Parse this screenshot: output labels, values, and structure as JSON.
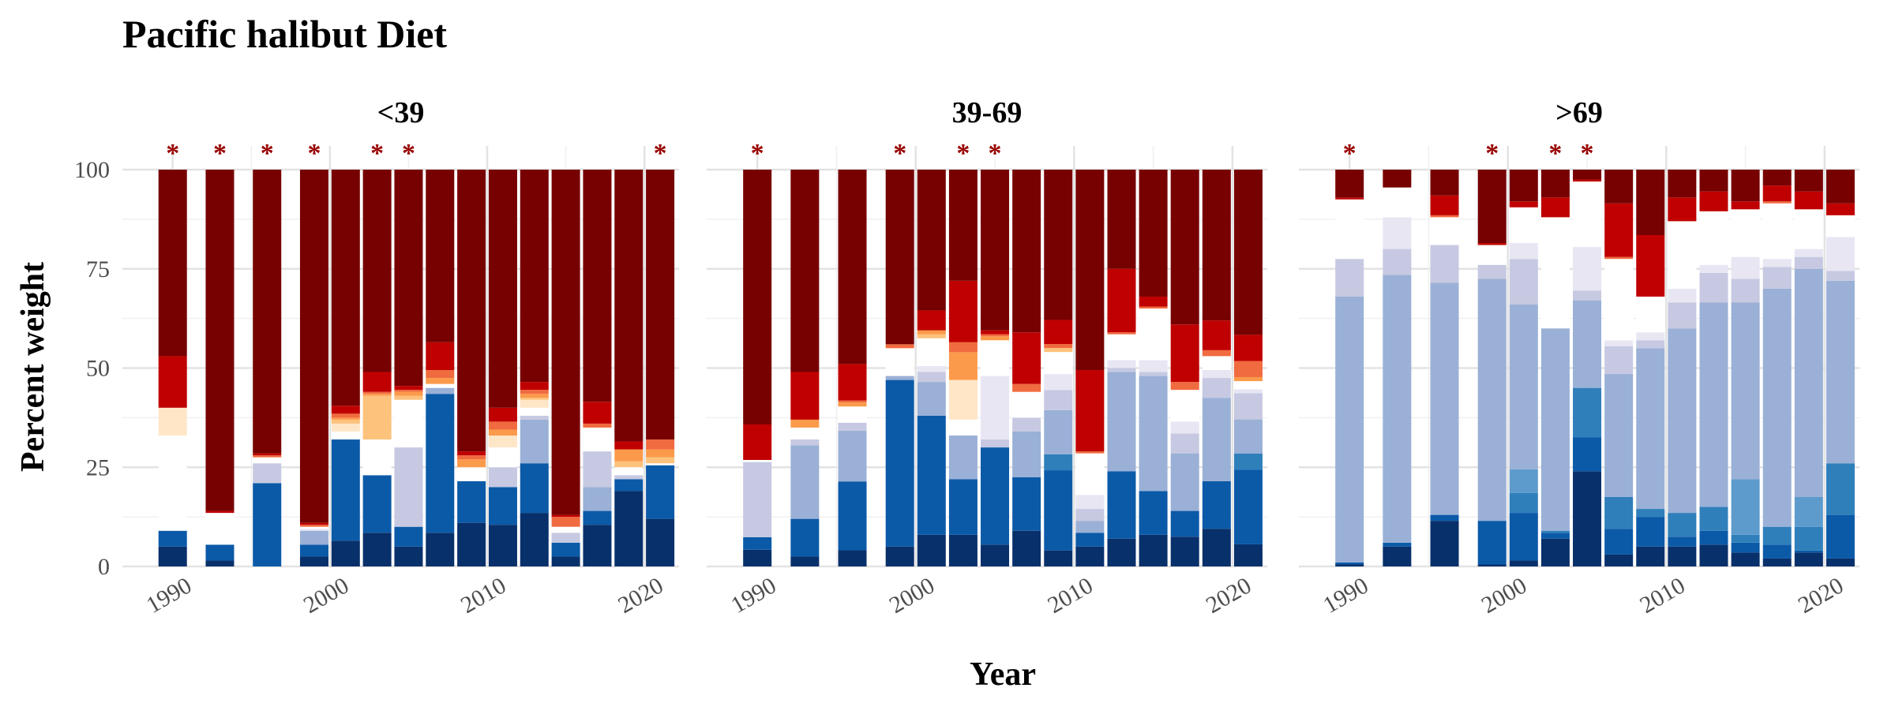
{
  "chart_data": {
    "type": "bar",
    "stacked": true,
    "title": "Pacific halibut Diet",
    "xlabel": "Year",
    "ylabel": "Percent weight",
    "ylim": [
      0,
      100
    ],
    "yticks": [
      "0",
      "25",
      "50",
      "75",
      "100"
    ],
    "xticks": [
      "1990",
      "2000",
      "2010",
      "2020"
    ],
    "xlim": [
      1986.8,
      2022.2
    ],
    "grid": true,
    "legend": "none",
    "colors": [
      "#08306b",
      "#0b5aa8",
      "#2f7fbb",
      "#5d9bcc",
      "#9ab0d6",
      "#c6c9e1",
      "#e8e6f3",
      "#ffffff",
      "#ffe6c7",
      "#fdc27c",
      "#fb9a4a",
      "#f06b3f",
      "#c00000",
      "#770000"
    ],
    "star_color": "#990000",
    "panels": [
      {
        "label": "<39",
        "bars": [
          {
            "year": 1990,
            "star": true,
            "values": [
              5,
              4,
              0,
              0,
              0,
              0,
              0,
              24,
              7,
              0,
              0,
              0,
              13,
              47
            ]
          },
          {
            "year": 1993,
            "star": true,
            "values": [
              1.5,
              4,
              0,
              0,
              0,
              0,
              0,
              8,
              0,
              0,
              0,
              0,
              0.5,
              86
            ]
          },
          {
            "year": 1996,
            "star": true,
            "values": [
              0,
              21,
              0,
              0,
              0,
              5,
              0,
              1.5,
              0,
              0,
              0,
              0.5,
              0.5,
              71.5
            ]
          },
          {
            "year": 1999,
            "star": true,
            "values": [
              2.5,
              3,
              0,
              0,
              3.5,
              0,
              0.5,
              0.5,
              0,
              0,
              0,
              0.5,
              0.5,
              89
            ]
          },
          {
            "year": 2001,
            "star": false,
            "values": [
              6.5,
              25.5,
              0,
              0,
              0,
              0,
              0,
              2,
              2,
              1,
              0.5,
              1,
              2,
              59.5
            ]
          },
          {
            "year": 2003,
            "star": true,
            "values": [
              8.5,
              14.5,
              0,
              0,
              0,
              0,
              0,
              9,
              0,
              11,
              0.5,
              0.5,
              5,
              51
            ]
          },
          {
            "year": 2005,
            "star": true,
            "values": [
              5,
              5,
              0,
              0,
              0,
              20,
              0,
              12,
              0,
              1,
              1,
              0.5,
              1,
              54.5
            ]
          },
          {
            "year": 2007,
            "star": false,
            "values": [
              8.5,
              35,
              0,
              0,
              1.5,
              0,
              0,
              1,
              0,
              0,
              1.5,
              2,
              7,
              43.5
            ]
          },
          {
            "year": 2009,
            "star": false,
            "values": [
              11,
              10.5,
              0,
              0,
              0,
              0,
              0,
              3.5,
              0,
              0,
              2,
              1,
              1,
              71
            ]
          },
          {
            "year": 2011,
            "star": false,
            "values": [
              10.5,
              9.5,
              0,
              0,
              0,
              5,
              0,
              5,
              3,
              0,
              1.5,
              2,
              3.5,
              60
            ]
          },
          {
            "year": 2013,
            "star": false,
            "values": [
              13.5,
              12.5,
              0,
              0,
              11,
              1,
              0,
              2,
              2,
              0.5,
              1,
              1,
              2,
              53.5
            ]
          },
          {
            "year": 2015,
            "star": false,
            "values": [
              2.5,
              3.5,
              0,
              0,
              0,
              2.5,
              0,
              1.5,
              0,
              0,
              0,
              2.5,
              0.5,
              87
            ]
          },
          {
            "year": 2017,
            "star": false,
            "values": [
              10.5,
              3.5,
              0,
              0,
              6,
              9,
              0,
              6,
              0,
              0,
              0,
              1,
              5.5,
              58.5
            ]
          },
          {
            "year": 2019,
            "star": false,
            "values": [
              19,
              3,
              0,
              0,
              0,
              1,
              0,
              2,
              0,
              1.5,
              3,
              0,
              2,
              68.5
            ]
          },
          {
            "year": 2021,
            "star": true,
            "values": [
              12,
              13.5,
              0,
              0,
              0,
              0,
              0,
              0.5,
              0,
              1.5,
              2,
              2.5,
              0,
              68
            ]
          }
        ]
      },
      {
        "label": "39-69",
        "bars": [
          {
            "year": 1990,
            "star": true,
            "values": [
              4,
              3,
              0,
              0,
              0,
              18,
              0,
              0.5,
              0,
              0,
              0,
              0,
              8.5,
              61
            ]
          },
          {
            "year": 1993,
            "star": false,
            "values": [
              2.5,
              9.5,
              0,
              0,
              18.5,
              1.5,
              0,
              3,
              0,
              0,
              2,
              0,
              12,
              51
            ]
          },
          {
            "year": 1996,
            "star": false,
            "values": [
              4,
              17,
              0,
              0,
              12.5,
              2,
              0,
              4,
              0,
              0,
              1,
              0.5,
              9,
              48
            ]
          },
          {
            "year": 1999,
            "star": true,
            "values": [
              5,
              42,
              0,
              0,
              1,
              0,
              0,
              7,
              0,
              0,
              0,
              1,
              0,
              44
            ]
          },
          {
            "year": 2001,
            "star": false,
            "values": [
              8,
              30,
              0,
              0,
              8.5,
              2.5,
              1.5,
              7,
              0,
              1,
              1,
              0,
              5,
              35.5
            ]
          },
          {
            "year": 2003,
            "star": true,
            "values": [
              8,
              14,
              0,
              0,
              11,
              0,
              0,
              4,
              10,
              0,
              7,
              2.5,
              15.5,
              28
            ]
          },
          {
            "year": 2005,
            "star": true,
            "values": [
              5.5,
              24.5,
              0,
              0,
              0,
              2,
              16,
              9,
              0,
              0,
              1,
              0.5,
              1,
              40.5
            ]
          },
          {
            "year": 2007,
            "star": false,
            "values": [
              9,
              13.5,
              0,
              0,
              11.5,
              3.5,
              0,
              6.5,
              0,
              0,
              0,
              2,
              13,
              41
            ]
          },
          {
            "year": 2009,
            "star": false,
            "values": [
              4,
              20,
              4,
              0,
              11,
              5,
              4,
              5.5,
              0,
              1,
              0,
              1,
              6,
              37.5
            ]
          },
          {
            "year": 2011,
            "star": false,
            "values": [
              5,
              3.5,
              0,
              0,
              3,
              3,
              3.5,
              10.5,
              0,
              0,
              0,
              0.5,
              20.5,
              50.5
            ]
          },
          {
            "year": 2013,
            "star": false,
            "values": [
              7,
              17,
              0,
              0,
              25,
              1,
              2,
              6.5,
              0,
              0,
              0,
              0.5,
              16,
              25
            ]
          },
          {
            "year": 2015,
            "star": false,
            "values": [
              8,
              11,
              0,
              0,
              29,
              1,
              3,
              13,
              0,
              0,
              0,
              0.5,
              2.5,
              32
            ]
          },
          {
            "year": 2017,
            "star": false,
            "values": [
              7.5,
              6.5,
              0,
              0,
              14.5,
              5,
              3,
              8,
              0,
              0,
              0,
              2,
              14.5,
              39
            ]
          },
          {
            "year": 2019,
            "star": false,
            "values": [
              9.5,
              12,
              0,
              0,
              21,
              5,
              2,
              3.5,
              0,
              0,
              0,
              1.5,
              7.5,
              38
            ]
          },
          {
            "year": 2021,
            "star": false,
            "values": [
              5.5,
              18.5,
              4,
              0,
              8.5,
              6.5,
              1,
              2,
              0,
              0,
              1,
              4,
              6.5,
              41
            ]
          }
        ]
      },
      {
        "label": ">69",
        "bars": [
          {
            "year": 1990,
            "star": true,
            "values": [
              0.5,
              0.5,
              0,
              0,
              67,
              9.5,
              0,
              15,
              0,
              0,
              0,
              0,
              0.5,
              7
            ]
          },
          {
            "year": 1993,
            "star": false,
            "values": [
              5,
              1,
              0,
              0,
              67.5,
              6.5,
              8,
              7.5,
              0,
              0,
              0,
              0,
              0,
              4.5
            ]
          },
          {
            "year": 1996,
            "star": false,
            "values": [
              11.5,
              1.5,
              0,
              0,
              58.5,
              9.5,
              0,
              7,
              0,
              0,
              0,
              0.5,
              5,
              6.5
            ]
          },
          {
            "year": 1999,
            "star": true,
            "values": [
              0.5,
              11,
              0,
              0,
              61,
              3.5,
              0,
              5,
              0,
              0,
              0,
              0,
              0.5,
              18.5
            ]
          },
          {
            "year": 2001,
            "star": false,
            "values": [
              1.5,
              12,
              5,
              6,
              41.5,
              11.5,
              4,
              9,
              0,
              0,
              0,
              0,
              1.5,
              8
            ]
          },
          {
            "year": 2003,
            "star": true,
            "values": [
              7,
              1.5,
              0.5,
              0,
              51,
              0,
              0,
              28,
              0,
              0,
              0,
              0,
              5,
              7
            ]
          },
          {
            "year": 2005,
            "star": true,
            "values": [
              24,
              8.5,
              12.5,
              0,
              22,
              2.5,
              11,
              16.5,
              0,
              0,
              0,
              0,
              0.5,
              2.5
            ]
          },
          {
            "year": 2007,
            "star": false,
            "values": [
              3,
              6.5,
              8,
              0,
              31,
              7,
              1.5,
              20.5,
              0,
              0,
              0,
              0.5,
              13.5,
              8.5
            ]
          },
          {
            "year": 2009,
            "star": false,
            "values": [
              5,
              7.5,
              2,
              0,
              40.5,
              2,
              2,
              9,
              0,
              0,
              0,
              0,
              15.5,
              16.5
            ]
          },
          {
            "year": 2011,
            "star": false,
            "values": [
              5,
              2.5,
              6,
              0,
              46.5,
              6.5,
              3.5,
              17,
              0,
              0,
              0,
              0,
              6,
              7
            ]
          },
          {
            "year": 2013,
            "star": false,
            "values": [
              5.5,
              3.5,
              6,
              0,
              51.5,
              7.5,
              2,
              13.5,
              0,
              0,
              0,
              0,
              5,
              5.5
            ]
          },
          {
            "year": 2015,
            "star": false,
            "values": [
              3.5,
              2.5,
              2,
              14,
              44.5,
              6,
              5.5,
              12,
              0,
              0,
              0,
              0,
              2,
              8
            ]
          },
          {
            "year": 2017,
            "star": false,
            "values": [
              2,
              3.5,
              4.5,
              0,
              60,
              5.5,
              2,
              14,
              0,
              0,
              0,
              0.5,
              4,
              4
            ]
          },
          {
            "year": 2019,
            "star": false,
            "values": [
              3.5,
              0.5,
              6,
              7.5,
              57.5,
              3,
              2,
              10,
              0,
              0,
              0,
              0,
              4.5,
              5.5
            ]
          },
          {
            "year": 2021,
            "star": false,
            "values": [
              2,
              11,
              13,
              0,
              46,
              2.5,
              8.5,
              5.5,
              0,
              0,
              0,
              0,
              3,
              8.5
            ]
          }
        ]
      }
    ]
  }
}
